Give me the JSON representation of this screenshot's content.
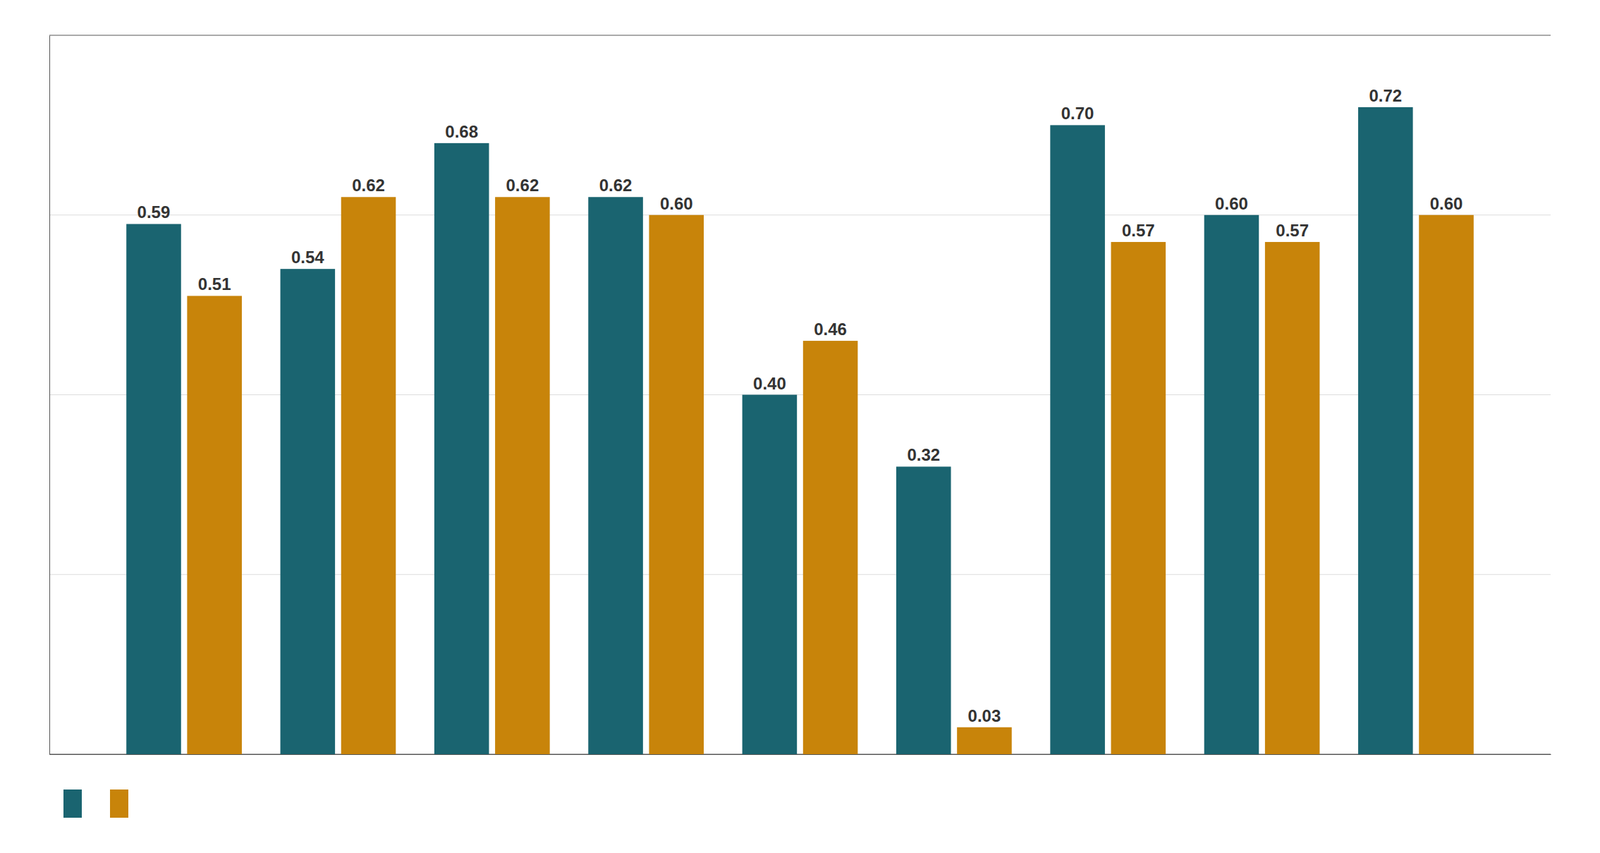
{
  "chart_data": {
    "type": "bar",
    "categories": [
      null,
      null,
      null,
      null,
      null,
      null,
      null,
      null,
      null
    ],
    "series": [
      {
        "color": "#1a6470",
        "values": [
          0.59,
          0.54,
          0.68,
          0.62,
          0.4,
          0.32,
          0.7,
          0.6,
          0.72
        ],
        "value_labels": [
          "0.59",
          "0.54",
          "0.68",
          "0.62",
          "0.40",
          "0.32",
          "0.70",
          "0.60",
          "0.72"
        ]
      },
      {
        "color": "#c8840a",
        "values": [
          0.51,
          0.62,
          0.62,
          0.6,
          0.46,
          0.03,
          0.57,
          0.57,
          0.6
        ],
        "value_labels": [
          "0.51",
          "0.62",
          "0.62",
          "0.60",
          "0.46",
          "0.03",
          "0.57",
          "0.57",
          "0.60"
        ]
      }
    ],
    "ylim": [
      0,
      0.8
    ],
    "yticks": [
      0.0,
      0.2,
      0.4,
      0.6,
      0.8
    ],
    "grid": true,
    "data_labels": true,
    "tick_labels": false,
    "legend": "lower left"
  }
}
